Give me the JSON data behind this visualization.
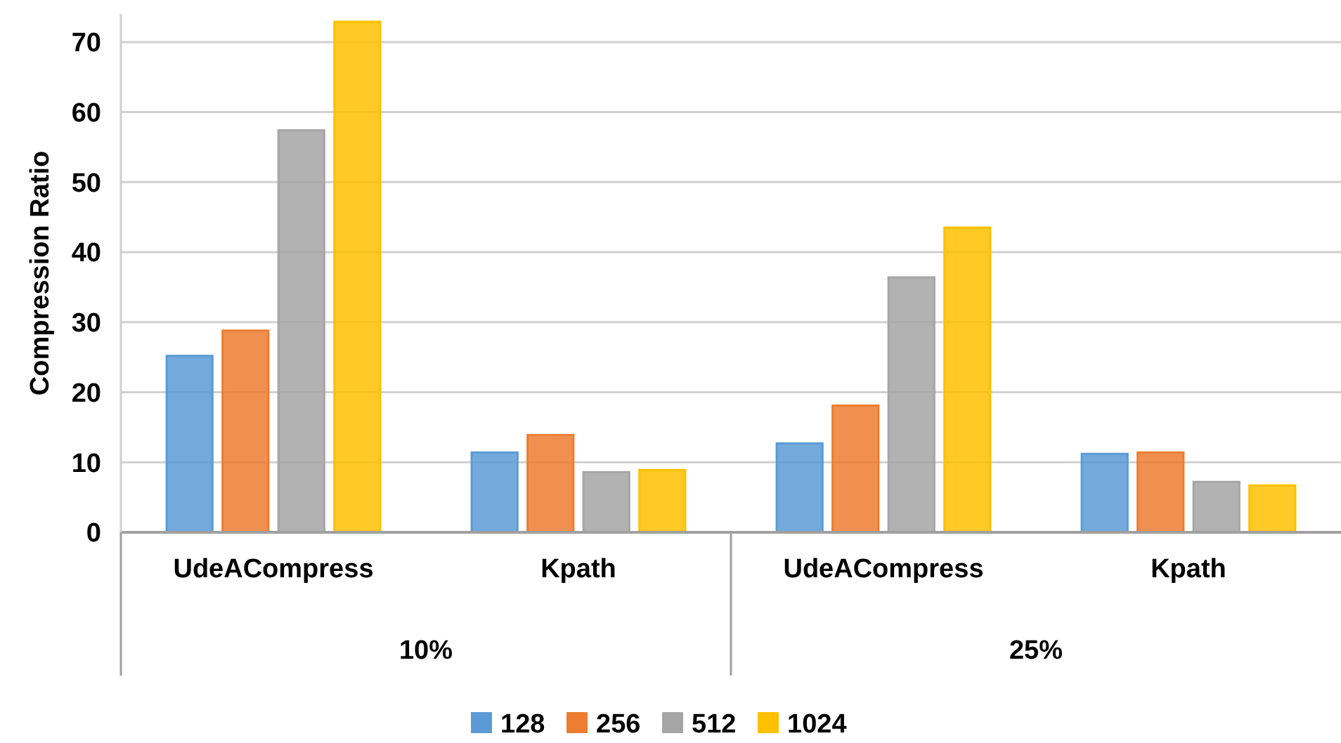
{
  "chart_data": {
    "type": "bar",
    "ylabel": "Compression Ratio",
    "categories": [
      "UdeACompress",
      "Kpath",
      "UdeACompress",
      "Kpath"
    ],
    "series": [
      {
        "name": "128",
        "color": "#5b9bd5",
        "values": [
          25.2,
          11.4,
          12.7,
          11.2
        ]
      },
      {
        "name": "256",
        "color": "#ed7d31",
        "values": [
          28.8,
          13.9,
          18.1,
          11.4
        ]
      },
      {
        "name": "512",
        "color": "#a5a5a5",
        "values": [
          57.4,
          8.6,
          36.4,
          7.2
        ]
      },
      {
        "name": "1024",
        "color": "#ffc000",
        "values": [
          72.9,
          8.9,
          43.5,
          6.7
        ]
      }
    ],
    "annotations": [
      "10%",
      "25%"
    ],
    "ylim": [
      0,
      74
    ],
    "yticks": [
      0,
      10,
      20,
      30,
      40,
      50,
      60,
      70
    ],
    "grid": "y",
    "legend": "bottom"
  }
}
